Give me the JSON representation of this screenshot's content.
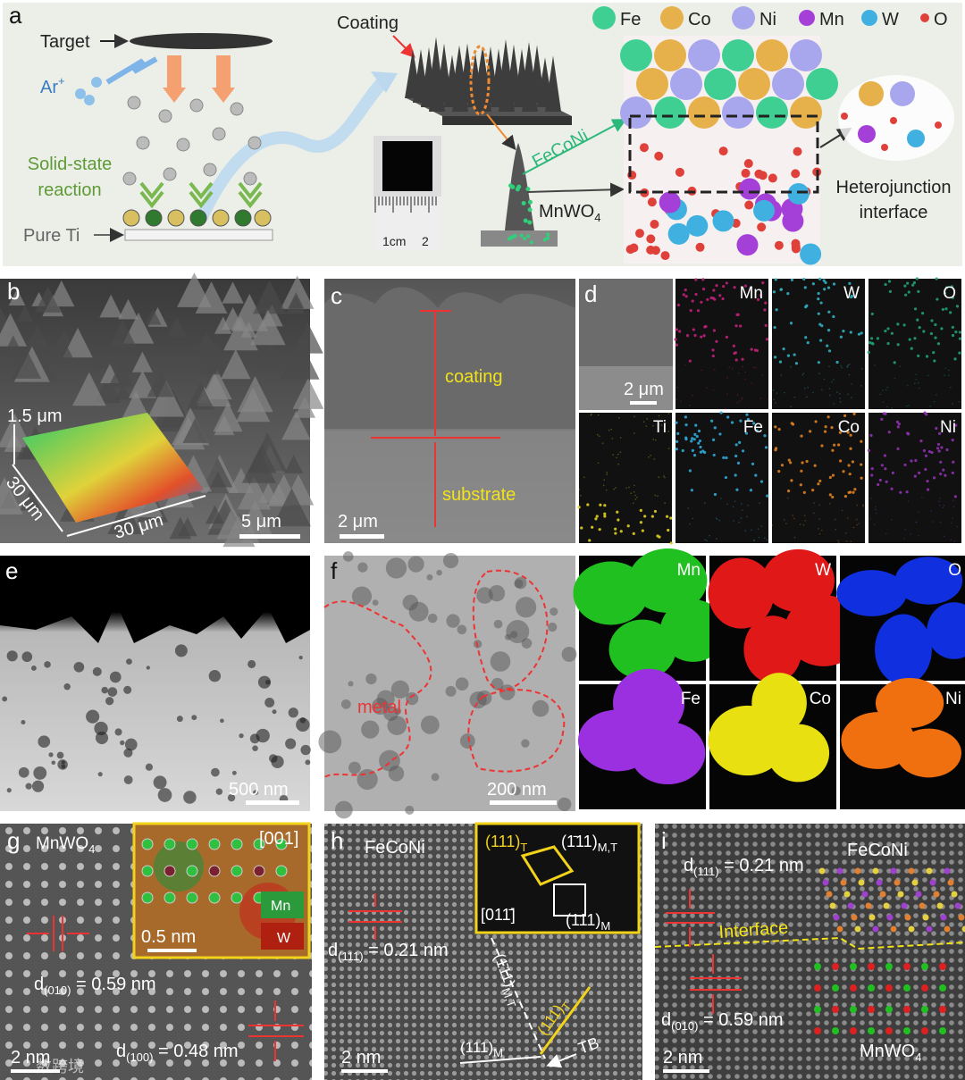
{
  "watermark": "数跨境",
  "panel_a": {
    "letter": "a",
    "target": "Target",
    "ar": {
      "base": "Ar",
      "sup": "+"
    },
    "reaction": [
      "Solid-state",
      "reaction"
    ],
    "pure_ti": "Pure Ti",
    "coating": "Coating",
    "ruler": [
      "1cm",
      "2"
    ],
    "feconi": "FeCoNi",
    "mnwo4": {
      "base": "MnWO",
      "sub": "4"
    },
    "legend": [
      "Fe",
      "Co",
      "Ni",
      "Mn",
      "W",
      "O"
    ],
    "interface": [
      "Heterojunction",
      "interface"
    ]
  },
  "panel_b": {
    "letter": "b",
    "height": "1.5 μm",
    "width1": "30 μm",
    "width2": "30 μm",
    "scale": "5 μm"
  },
  "panel_c": {
    "letter": "c",
    "coating": "coating",
    "substrate": "substrate",
    "scale": "2 μm"
  },
  "panel_d": {
    "letter": "d",
    "scale": "2 μm",
    "maps": [
      "Mn",
      "W",
      "O",
      "Ti",
      "Fe",
      "Co",
      "Ni"
    ]
  },
  "panel_e": {
    "letter": "e",
    "scale": "500 nm"
  },
  "panel_f": {
    "letter": "f",
    "metal": "metal",
    "scale": "200 nm",
    "maps": [
      "Mn",
      "W",
      "O",
      "Fe",
      "Co",
      "Ni"
    ]
  },
  "panel_g": {
    "letter": "g",
    "phase": {
      "base": "MnWO",
      "sub": "4"
    },
    "zone": "[001]",
    "inset_mn": "Mn",
    "inset_w": "W",
    "inset_scale": "0.5 nm",
    "d010": {
      "base": "d",
      "sub": "(010)",
      "rest": " = 0.59 nm"
    },
    "d100": {
      "base": "d",
      "sub": "(100)",
      "rest": " = 0.48 nm"
    },
    "scale": "2 nm"
  },
  "panel_h": {
    "letter": "h",
    "phase": "FeCoNi",
    "fft_111t": {
      "base": "(111)",
      "sub": "T"
    },
    "fft_m111mt": {
      "base": "(1̄11)",
      "sub": "M,T"
    },
    "fft_zone": "[011̄]",
    "fft_111m": {
      "base": "(111)",
      "sub": "M"
    },
    "d111": {
      "base": "d",
      "sub": "(111)",
      "rest": " = 0.21 nm"
    },
    "line_m111mt": {
      "base": "(1̄11)",
      "sub": "M,T"
    },
    "line_111t": {
      "base": "(111)",
      "sub": "T"
    },
    "line_111m": {
      "base": "(111)",
      "sub": "M"
    },
    "tb": "TB",
    "scale": "2 nm"
  },
  "panel_i": {
    "letter": "i",
    "top_phase": "FeCoNi",
    "d111": {
      "base": "d",
      "sub": "(111)",
      "rest": " = 0.21 nm"
    },
    "interface": "Interface",
    "d010": {
      "base": "d",
      "sub": "(010)",
      "rest": " = 0.59 nm"
    },
    "bottom_phase": {
      "base": "MnWO",
      "sub": "4"
    },
    "scale": "2 nm"
  }
}
